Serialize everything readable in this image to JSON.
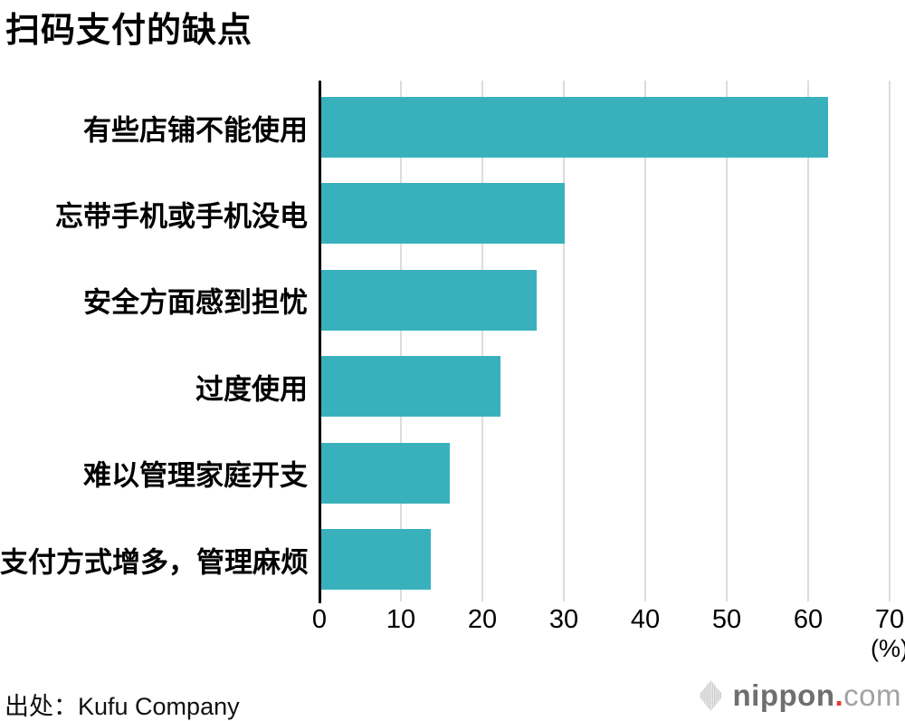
{
  "title": "扫码支付的缺点",
  "chart_data": {
    "type": "bar",
    "orientation": "horizontal",
    "title": "扫码支付的缺点",
    "categories": [
      "有些店铺不能使用",
      "忘带手机或手机没电",
      "安全方面感到担忧",
      "过度使用",
      "难以管理家庭开支",
      "支付方式增多，管理麻烦"
    ],
    "values": [
      62.3,
      30.0,
      26.5,
      22.1,
      15.9,
      13.6
    ],
    "xlim": [
      0,
      70
    ],
    "xticks": [
      0,
      10,
      20,
      30,
      40,
      50,
      60,
      70
    ],
    "unit_label": "(%)",
    "grid": true,
    "bar_color": "#39b1bd",
    "grid_color": "#dcdcdc",
    "axis_color": "#000000"
  },
  "footer": {
    "source": "出处：Kufu Company",
    "logo": {
      "name": "nippon",
      "dot": ".",
      "tld": "com",
      "icon": "soundwave-icon",
      "dot_color": "#e8382f",
      "icon_color": "#c8c8c8"
    }
  }
}
